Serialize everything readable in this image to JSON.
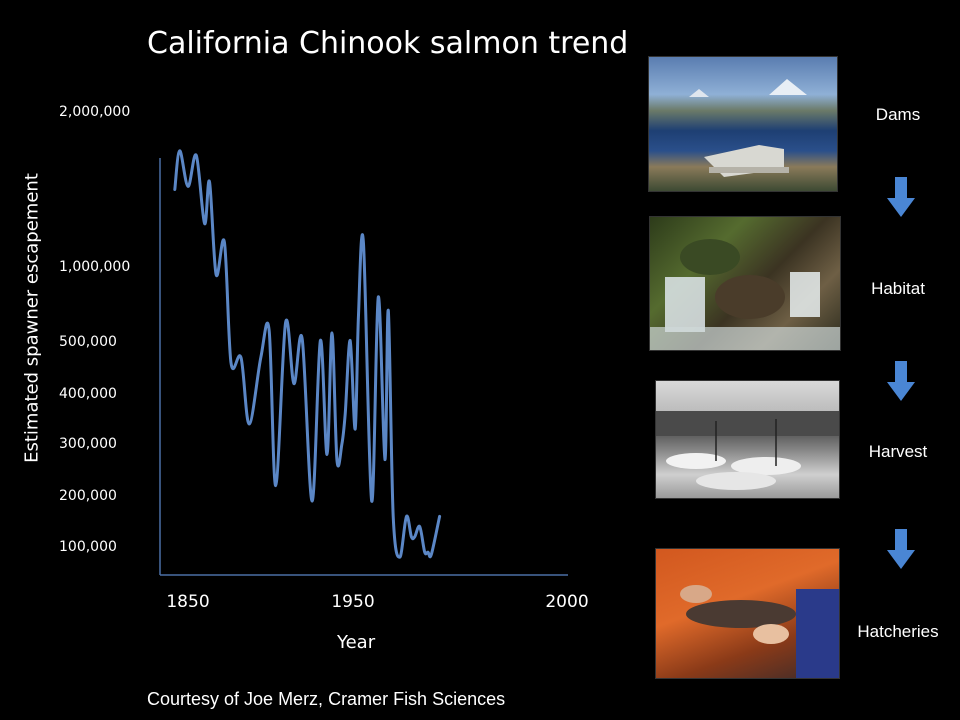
{
  "chart_data": {
    "type": "line",
    "title": "California Chinook salmon trend",
    "xlabel": "Year",
    "ylabel": "Estimated spawner escapement",
    "x_ticks": [
      "1850",
      "1950",
      "2000"
    ],
    "y_ticks": [
      "2,000,000",
      "1,000,000",
      "500,000",
      "400,000",
      "300,000",
      "200,000",
      "100,000"
    ],
    "series": [
      {
        "x": [
          1842,
          1845,
          1850,
          1855,
          1860,
          1863,
          1867,
          1872,
          1876,
          1882,
          1887,
          1894,
          1899,
          1903,
          1909,
          1914,
          1919,
          1925,
          1930,
          1934,
          1937,
          1940,
          1943,
          1945,
          1948,
          1951,
          1953,
          1956,
          1961,
          1965,
          1969,
          1971,
          1974,
          1978,
          1982,
          1985,
          1987,
          1990,
          1993,
          1995,
          1997,
          2002
        ],
        "y": [
          1500000,
          1750000,
          1520000,
          1720000,
          1280000,
          1550000,
          950000,
          1160000,
          460000,
          470000,
          340000,
          470000,
          580000,
          220000,
          630000,
          420000,
          520000,
          190000,
          510000,
          280000,
          560000,
          270000,
          300000,
          360000,
          510000,
          330000,
          680000,
          1160000,
          190000,
          800000,
          270000,
          710000,
          160000,
          80000,
          160000,
          120000,
          120000,
          140000,
          90000,
          90000,
          85000,
          160000
        ]
      }
    ],
    "line_color": "#5b87c6"
  },
  "credit": "Courtesy of Joe Merz, Cramer Fish Sciences",
  "drivers": [
    {
      "label": "Dams",
      "icon": "dam-photo"
    },
    {
      "label": "Habitat",
      "icon": "stream-photo"
    },
    {
      "label": "Harvest",
      "icon": "harbor-photo"
    },
    {
      "label": "Hatcheries",
      "icon": "fish-photo"
    }
  ],
  "arrow_color": "#4a86d4"
}
